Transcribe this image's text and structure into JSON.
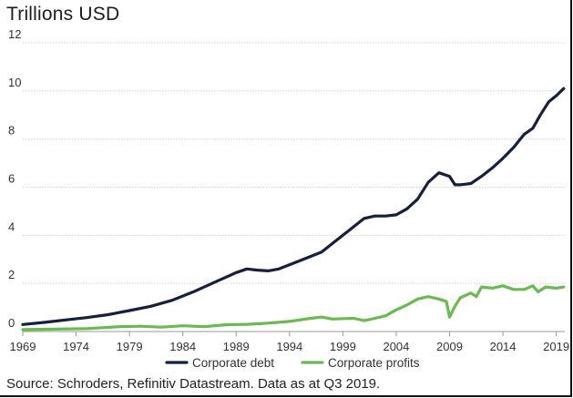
{
  "title": "Trillions USD",
  "source": "Source: Schroders, Refinitiv Datastream. Data as at Q3 2019.",
  "chart_data": {
    "type": "line",
    "title": "Trillions USD",
    "xlabel": "",
    "ylabel": "Trillions USD",
    "xlim": [
      1969,
      2019.8
    ],
    "ylim": [
      0,
      12
    ],
    "y_ticks": [
      0,
      2,
      4,
      6,
      8,
      10,
      12
    ],
    "x_ticks": [
      1969,
      1974,
      1979,
      1984,
      1989,
      1994,
      1999,
      2004,
      2009,
      2014,
      2019
    ],
    "grid": "horizontal",
    "legend_position": "bottom-center",
    "series": [
      {
        "name": "Corporate debt",
        "color": "#15203c",
        "points": [
          [
            1969,
            0.29
          ],
          [
            1971,
            0.38
          ],
          [
            1973,
            0.48
          ],
          [
            1975,
            0.58
          ],
          [
            1977,
            0.7
          ],
          [
            1979,
            0.87
          ],
          [
            1981,
            1.05
          ],
          [
            1983,
            1.3
          ],
          [
            1985,
            1.65
          ],
          [
            1987,
            2.05
          ],
          [
            1989,
            2.45
          ],
          [
            1990,
            2.6
          ],
          [
            1991,
            2.55
          ],
          [
            1992,
            2.52
          ],
          [
            1993,
            2.6
          ],
          [
            1995,
            2.95
          ],
          [
            1997,
            3.3
          ],
          [
            1999,
            4.0
          ],
          [
            2001,
            4.7
          ],
          [
            2002,
            4.8
          ],
          [
            2003,
            4.8
          ],
          [
            2004,
            4.85
          ],
          [
            2005,
            5.1
          ],
          [
            2006,
            5.5
          ],
          [
            2007,
            6.2
          ],
          [
            2008,
            6.6
          ],
          [
            2009,
            6.45
          ],
          [
            2009.5,
            6.1
          ],
          [
            2010,
            6.1
          ],
          [
            2011,
            6.15
          ],
          [
            2012,
            6.45
          ],
          [
            2013,
            6.8
          ],
          [
            2014,
            7.2
          ],
          [
            2015,
            7.65
          ],
          [
            2016,
            8.2
          ],
          [
            2016.8,
            8.45
          ],
          [
            2017.5,
            9.0
          ],
          [
            2018.3,
            9.55
          ],
          [
            2019,
            9.8
          ],
          [
            2019.7,
            10.1
          ]
        ]
      },
      {
        "name": "Corporate profits",
        "color": "#6ab951",
        "points": [
          [
            1969,
            0.08
          ],
          [
            1972,
            0.1
          ],
          [
            1975,
            0.12
          ],
          [
            1978,
            0.2
          ],
          [
            1980,
            0.22
          ],
          [
            1982,
            0.18
          ],
          [
            1984,
            0.24
          ],
          [
            1986,
            0.2
          ],
          [
            1988,
            0.28
          ],
          [
            1990,
            0.3
          ],
          [
            1992,
            0.35
          ],
          [
            1994,
            0.42
          ],
          [
            1996,
            0.55
          ],
          [
            1997,
            0.6
          ],
          [
            1998,
            0.52
          ],
          [
            2000,
            0.55
          ],
          [
            2001,
            0.45
          ],
          [
            2002,
            0.55
          ],
          [
            2003,
            0.65
          ],
          [
            2004,
            0.9
          ],
          [
            2005,
            1.1
          ],
          [
            2006,
            1.35
          ],
          [
            2007,
            1.45
          ],
          [
            2008,
            1.35
          ],
          [
            2008.7,
            1.25
          ],
          [
            2009,
            0.6
          ],
          [
            2009.5,
            1.05
          ],
          [
            2010,
            1.4
          ],
          [
            2011,
            1.6
          ],
          [
            2011.5,
            1.45
          ],
          [
            2012,
            1.85
          ],
          [
            2013,
            1.8
          ],
          [
            2014,
            1.9
          ],
          [
            2015,
            1.75
          ],
          [
            2016,
            1.75
          ],
          [
            2016.8,
            1.9
          ],
          [
            2017.3,
            1.65
          ],
          [
            2018,
            1.85
          ],
          [
            2019,
            1.8
          ],
          [
            2019.7,
            1.85
          ]
        ]
      }
    ]
  }
}
